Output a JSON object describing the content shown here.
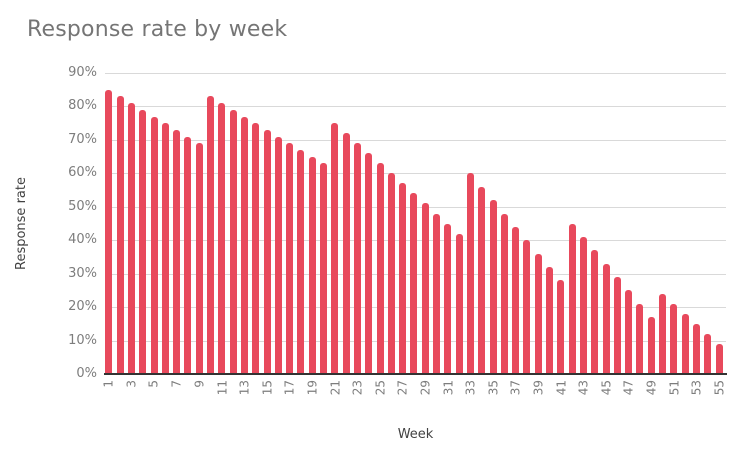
{
  "chart_data": {
    "type": "bar",
    "title": "Response rate by week",
    "xlabel": "Week",
    "ylabel": "Response rate",
    "x": [
      1,
      2,
      3,
      4,
      5,
      6,
      7,
      8,
      9,
      10,
      11,
      12,
      13,
      14,
      15,
      16,
      17,
      18,
      19,
      20,
      21,
      22,
      23,
      24,
      25,
      26,
      27,
      28,
      29,
      30,
      31,
      32,
      33,
      34,
      35,
      36,
      37,
      38,
      39,
      40,
      41,
      42,
      43,
      44,
      45,
      46,
      47,
      48,
      49,
      50,
      51,
      52,
      53,
      54,
      55
    ],
    "values": [
      85,
      83,
      81,
      79,
      77,
      75,
      73,
      71,
      69,
      83,
      81,
      79,
      77,
      75,
      73,
      71,
      69,
      67,
      65,
      63,
      75,
      72,
      69,
      66,
      63,
      60,
      57,
      54,
      51,
      48,
      45,
      42,
      60,
      56,
      52,
      48,
      44,
      40,
      36,
      32,
      28,
      45,
      41,
      37,
      33,
      29,
      25,
      21,
      17,
      24,
      21,
      18,
      15,
      12,
      9
    ],
    "ylim": [
      0,
      90
    ],
    "yticks": [
      0,
      10,
      20,
      30,
      40,
      50,
      60,
      70,
      80,
      90
    ],
    "ytick_labels": [
      "0%",
      "10%",
      "20%",
      "30%",
      "40%",
      "50%",
      "60%",
      "70%",
      "80%",
      "90%"
    ],
    "xticks": [
      1,
      3,
      5,
      7,
      9,
      11,
      13,
      15,
      17,
      19,
      21,
      23,
      25,
      27,
      29,
      31,
      33,
      35,
      37,
      39,
      41,
      43,
      45,
      47,
      49,
      51,
      53,
      55
    ],
    "grid": "horizontal",
    "legend": "none",
    "bar_color": "#e8495c",
    "gridline_color": "#d9d9d9",
    "baseline_color": "#333333",
    "title_color": "#757575",
    "tick_label_color": "#7d7d7d",
    "axis_title_color": "#424242"
  }
}
